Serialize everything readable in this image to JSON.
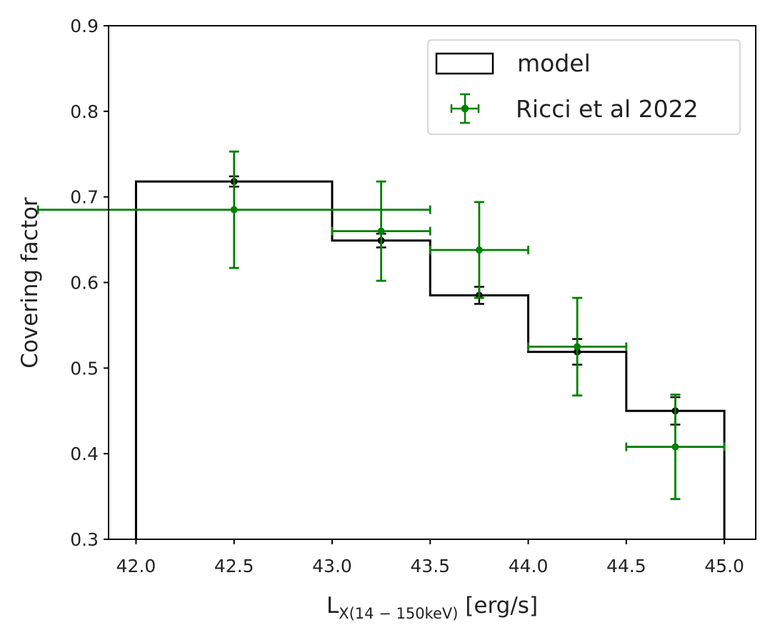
{
  "chart_data": {
    "type": "step-errorbar",
    "title": "",
    "xlabel": {
      "base": "L",
      "sub": "X(14 − 150keV)",
      "unit": " [erg/s]"
    },
    "ylabel": "Covering factor",
    "xlim": [
      41.86,
      45.16
    ],
    "ylim": [
      0.3,
      0.9
    ],
    "xticks": [
      42.0,
      42.5,
      43.0,
      43.5,
      44.0,
      44.5,
      45.0
    ],
    "xtick_labels": [
      "42.0",
      "42.5",
      "43.0",
      "43.5",
      "44.0",
      "44.5",
      "45.0"
    ],
    "yticks": [
      0.3,
      0.4,
      0.5,
      0.6,
      0.7,
      0.8,
      0.9
    ],
    "ytick_labels": [
      "0.3",
      "0.4",
      "0.5",
      "0.6",
      "0.7",
      "0.8",
      "0.9"
    ],
    "legend": {
      "position": "top-right",
      "entries": [
        {
          "label": "model",
          "style": "step-outline"
        },
        {
          "label": "Ricci et al 2022",
          "style": "errorbar"
        }
      ]
    },
    "series": [
      {
        "name": "model",
        "kind": "step",
        "color": "#000000",
        "bin_edges": [
          42.0,
          43.0,
          43.5,
          44.0,
          44.5,
          45.0
        ],
        "values": [
          0.718,
          0.649,
          0.585,
          0.519,
          0.45
        ],
        "baseline": 0.3,
        "points": [
          {
            "x": 42.5,
            "y": 0.718,
            "yerr": 0.006
          },
          {
            "x": 43.25,
            "y": 0.649,
            "yerr": 0.008
          },
          {
            "x": 43.75,
            "y": 0.585,
            "yerr": 0.01
          },
          {
            "x": 44.25,
            "y": 0.519,
            "yerr": 0.015
          },
          {
            "x": 44.75,
            "y": 0.45,
            "yerr": 0.016
          }
        ]
      },
      {
        "name": "Ricci et al 2022",
        "kind": "errorbar",
        "color": "#008000",
        "points": [
          {
            "x": 42.5,
            "y": 0.685,
            "xerr": 1.0,
            "yerr": 0.068
          },
          {
            "x": 43.25,
            "y": 0.66,
            "xerr": 0.25,
            "yerr": 0.058
          },
          {
            "x": 43.75,
            "y": 0.638,
            "xerr": 0.25,
            "yerr": 0.056
          },
          {
            "x": 44.25,
            "y": 0.525,
            "xerr": 0.25,
            "yerr": 0.057
          },
          {
            "x": 44.75,
            "y": 0.408,
            "xerr": 0.25,
            "yerr": 0.061
          }
        ]
      }
    ]
  }
}
